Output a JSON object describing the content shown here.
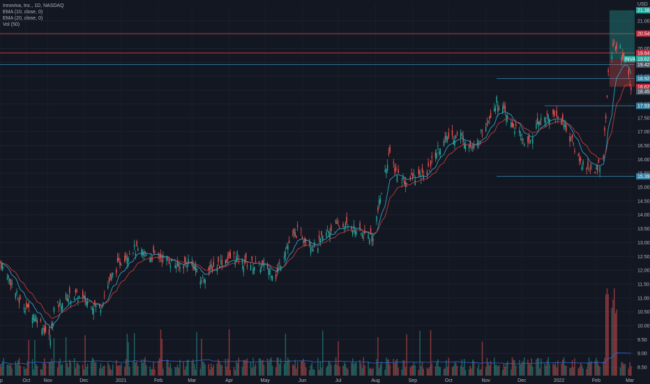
{
  "legend": {
    "title": "Innoviva, Inc., 1D, NASDAQ",
    "ema10": "EMA (10, close, 0)",
    "ema20": "EMA (20, close, 0)",
    "vol": "Vol (50)"
  },
  "chart_data": {
    "type": "candlestick",
    "currency": "USD",
    "y_ticks": [
      "8.50",
      "9.00",
      "9.50",
      "10.00",
      "10.50",
      "11.00",
      "11.50",
      "12.00",
      "12.50",
      "13.00",
      "13.50",
      "14.00",
      "14.50",
      "15.00",
      "15.50",
      "16.00",
      "16.50",
      "17.00",
      "17.50",
      "18.00",
      "18.50",
      "19.00",
      "19.50",
      "20.00",
      "20.50",
      "21.00"
    ],
    "ylim": [
      8.2,
      21.6
    ],
    "x_ticks": [
      "ep",
      "Oct",
      "Nov",
      "Dec",
      "2021",
      "Feb",
      "Mar",
      "Apr",
      "May",
      "Jun",
      "Jul",
      "Aug",
      "Sep",
      "Oct",
      "Nov",
      "Dec",
      "2022",
      "Feb",
      "Mar"
    ],
    "x_start": "2020-09-22",
    "x_end": "2022-03-05",
    "key_levels": [
      {
        "value": 20.54,
        "label": "20.54",
        "style": "solid",
        "color": "#c23b3b"
      },
      {
        "value": 19.84,
        "label": "19.84",
        "style": "solid",
        "color": "#c23b3b"
      },
      {
        "value": 19.42,
        "label": "19.42",
        "style": "solid",
        "color": "#2f7fa3"
      },
      {
        "value": 18.92,
        "label": "18.92",
        "style": "solid",
        "color": "#2f7fa3"
      },
      {
        "value": 17.93,
        "label": "17.93",
        "style": "solid",
        "color": "#2f7fa3"
      },
      {
        "value": 15.39,
        "label": "15.39",
        "style": "solid",
        "color": "#2f7fa3"
      }
    ],
    "price_tags": [
      {
        "value": 21.38,
        "label": "21.38",
        "color": "#26a69a"
      },
      {
        "value": 20.54,
        "label": "20.54",
        "color": "#c2283b"
      },
      {
        "value": 19.84,
        "label": "19.84",
        "color": "#c2283b"
      },
      {
        "value": 19.62,
        "label": "19.62",
        "color": "#26a69a"
      },
      {
        "value": 19.42,
        "label": "19.42",
        "color": "#4b5563"
      },
      {
        "value": 18.92,
        "label": "18.92",
        "color": "#2f7fa3"
      },
      {
        "value": 18.62,
        "label": "18.62",
        "color": "#c2283b"
      },
      {
        "value": 18.45,
        "label": "18.45",
        "color": "#4b5563"
      },
      {
        "value": 17.93,
        "label": "17.93",
        "color": "#2f7fa3"
      },
      {
        "value": 15.39,
        "label": "15.39",
        "color": "#2f7fa3"
      }
    ],
    "current_label": "INVA",
    "close_path": [
      [
        "2020-09-22",
        12.3
      ],
      [
        "2020-10-01",
        11.6
      ],
      [
        "2020-10-08",
        10.9
      ],
      [
        "2020-10-16",
        10.6
      ],
      [
        "2020-10-26",
        10.1
      ],
      [
        "2020-11-03",
        9.5
      ],
      [
        "2020-11-06",
        10.6
      ],
      [
        "2020-11-16",
        11.0
      ],
      [
        "2020-11-24",
        11.1
      ],
      [
        "2020-12-07",
        10.8
      ],
      [
        "2020-12-14",
        10.6
      ],
      [
        "2020-12-22",
        11.6
      ],
      [
        "2020-12-31",
        12.3
      ],
      [
        "2021-01-11",
        12.8
      ],
      [
        "2021-01-18",
        12.6
      ],
      [
        "2021-02-01",
        12.5
      ],
      [
        "2021-02-08",
        12.4
      ],
      [
        "2021-02-19",
        12.1
      ],
      [
        "2021-02-28",
        12.4
      ],
      [
        "2021-03-08",
        11.6
      ],
      [
        "2021-03-15",
        12.0
      ],
      [
        "2021-03-25",
        12.3
      ],
      [
        "2021-04-05",
        12.5
      ],
      [
        "2021-04-12",
        12.3
      ],
      [
        "2021-04-22",
        12.2
      ],
      [
        "2021-05-03",
        12.1
      ],
      [
        "2021-05-10",
        11.8
      ],
      [
        "2021-05-18",
        12.8
      ],
      [
        "2021-05-28",
        13.4
      ],
      [
        "2021-06-05",
        13.1
      ],
      [
        "2021-06-12",
        12.8
      ],
      [
        "2021-06-22",
        13.4
      ],
      [
        "2021-07-01",
        13.6
      ],
      [
        "2021-07-12",
        13.6
      ],
      [
        "2021-07-20",
        13.3
      ],
      [
        "2021-07-30",
        13.2
      ],
      [
        "2021-08-05",
        14.6
      ],
      [
        "2021-08-12",
        16.2
      ],
      [
        "2021-08-19",
        15.5
      ],
      [
        "2021-08-26",
        15.2
      ],
      [
        "2021-09-03",
        15.4
      ],
      [
        "2021-09-12",
        15.4
      ],
      [
        "2021-09-22",
        16.4
      ],
      [
        "2021-10-01",
        16.8
      ],
      [
        "2021-10-11",
        16.9
      ],
      [
        "2021-10-22",
        16.3
      ],
      [
        "2021-11-01",
        17.3
      ],
      [
        "2021-11-10",
        18.1
      ],
      [
        "2021-11-19",
        17.5
      ],
      [
        "2021-11-29",
        16.9
      ],
      [
        "2021-12-06",
        16.5
      ],
      [
        "2021-12-15",
        17.4
      ],
      [
        "2021-12-25",
        17.6
      ],
      [
        "2022-01-04",
        17.4
      ],
      [
        "2022-01-12",
        16.6
      ],
      [
        "2022-01-19",
        15.9
      ],
      [
        "2022-01-26",
        15.7
      ],
      [
        "2022-01-31",
        15.5
      ],
      [
        "2022-02-07",
        16.2
      ],
      [
        "2022-02-11",
        19.0
      ],
      [
        "2022-02-15",
        20.1
      ],
      [
        "2022-02-21",
        20.0
      ],
      [
        "2022-02-26",
        19.3
      ],
      [
        "2022-03-02",
        18.5
      ]
    ]
  }
}
